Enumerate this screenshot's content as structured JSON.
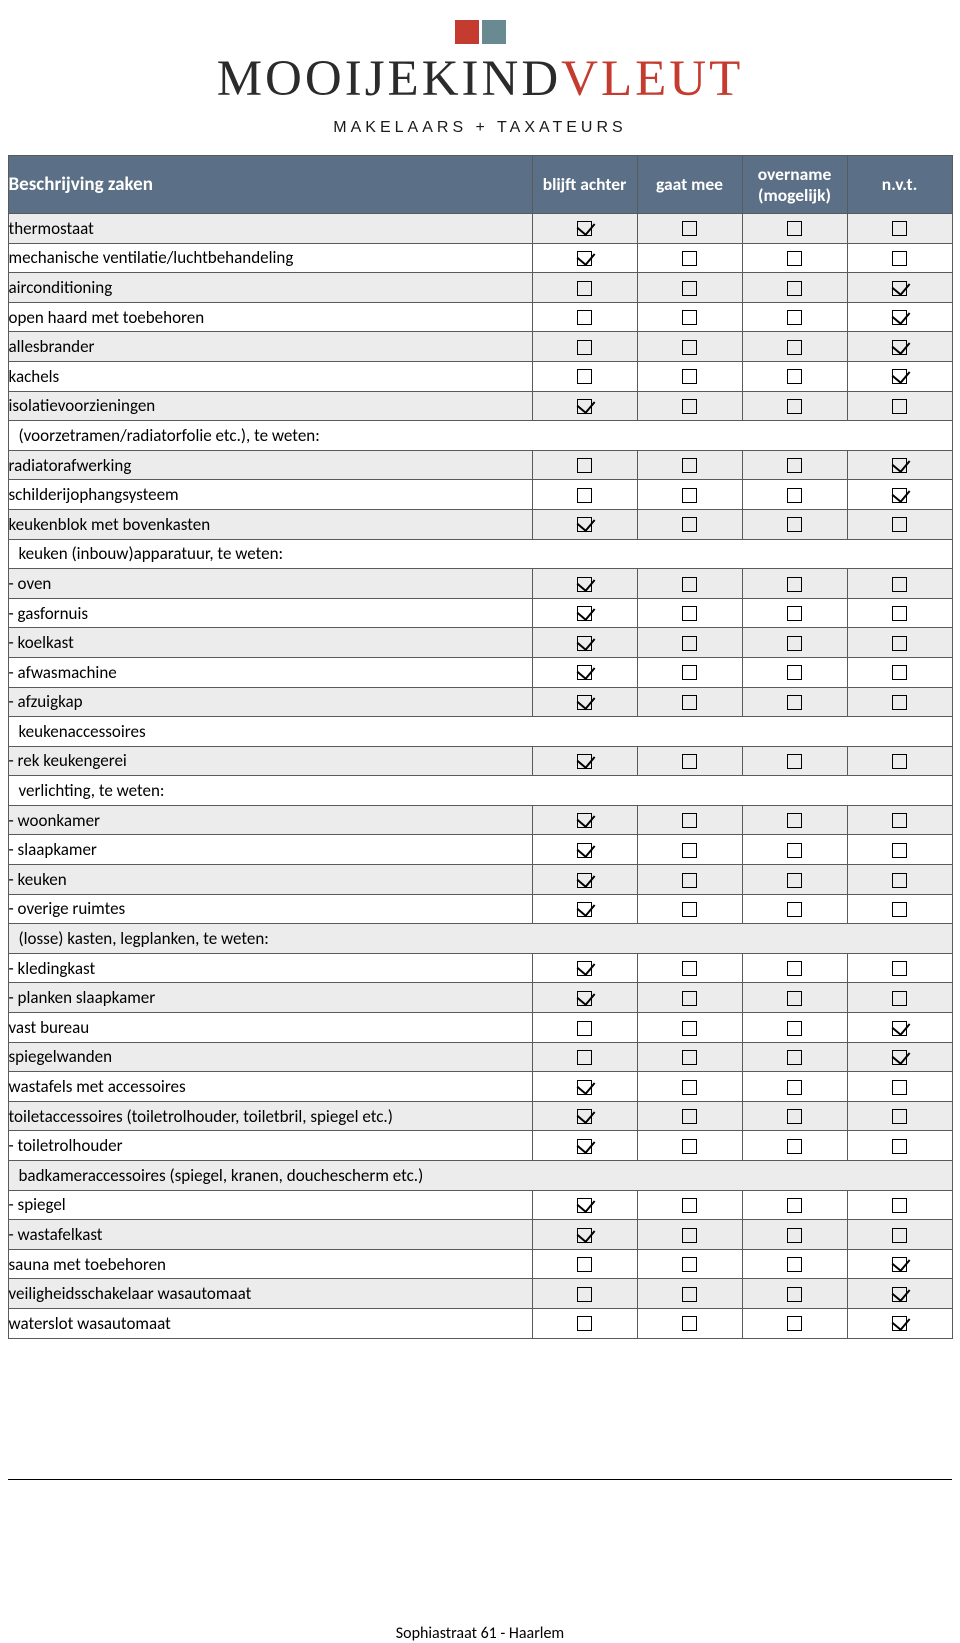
{
  "brand": {
    "word1": "MOOIJEKIND",
    "word2": "VLEUT",
    "color1": "#c43b2f",
    "color2": "#6a8a92",
    "tagline": "MAKELAARS + TAXATEURS",
    "word1_color": "#2b2b2b",
    "word2_color": "#c43b2f"
  },
  "headers": {
    "desc": "Beschrijving zaken",
    "c1": "blijft achter",
    "c2": "gaat mee",
    "c3": "overname (mogelijk)",
    "c4": "n.v.t."
  },
  "rows": [
    {
      "label": "thermostaat",
      "checks": [
        1,
        0,
        0,
        0
      ],
      "section": false
    },
    {
      "label": "mechanische ventilatie/luchtbehandeling",
      "checks": [
        1,
        0,
        0,
        0
      ],
      "section": false
    },
    {
      "label": "airconditioning",
      "checks": [
        0,
        0,
        0,
        1
      ],
      "section": false
    },
    {
      "label": "open haard met toebehoren",
      "checks": [
        0,
        0,
        0,
        1
      ],
      "section": false
    },
    {
      "label": "allesbrander",
      "checks": [
        0,
        0,
        0,
        1
      ],
      "section": false
    },
    {
      "label": "kachels",
      "checks": [
        0,
        0,
        0,
        1
      ],
      "section": false
    },
    {
      "label": "isolatievoorzieningen",
      "checks": [
        1,
        0,
        0,
        0
      ],
      "section": false
    },
    {
      "label": "(voorzetramen/radiatorfolie etc.), te weten:",
      "checks": null,
      "section": true
    },
    {
      "label": "radiatorafwerking",
      "checks": [
        0,
        0,
        0,
        1
      ],
      "section": false
    },
    {
      "label": "schilderijophangsysteem",
      "checks": [
        0,
        0,
        0,
        1
      ],
      "section": false
    },
    {
      "label": "keukenblok met bovenkasten",
      "checks": [
        1,
        0,
        0,
        0
      ],
      "section": false
    },
    {
      "label": "keuken (inbouw)apparatuur, te weten:",
      "checks": null,
      "section": true
    },
    {
      "label": "- oven",
      "checks": [
        1,
        0,
        0,
        0
      ],
      "section": false
    },
    {
      "label": "- gasfornuis",
      "checks": [
        1,
        0,
        0,
        0
      ],
      "section": false
    },
    {
      "label": "- koelkast",
      "checks": [
        1,
        0,
        0,
        0
      ],
      "section": false
    },
    {
      "label": "- afwasmachine",
      "checks": [
        1,
        0,
        0,
        0
      ],
      "section": false
    },
    {
      "label": "- afzuigkap",
      "checks": [
        1,
        0,
        0,
        0
      ],
      "section": false
    },
    {
      "label": "keukenaccessoires",
      "checks": null,
      "section": true
    },
    {
      "label": "- rek keukengerei",
      "checks": [
        1,
        0,
        0,
        0
      ],
      "section": false
    },
    {
      "label": "verlichting, te weten:",
      "checks": null,
      "section": true
    },
    {
      "label": "- woonkamer",
      "checks": [
        1,
        0,
        0,
        0
      ],
      "section": false
    },
    {
      "label": "- slaapkamer",
      "checks": [
        1,
        0,
        0,
        0
      ],
      "section": false
    },
    {
      "label": "- keuken",
      "checks": [
        1,
        0,
        0,
        0
      ],
      "section": false
    },
    {
      "label": "- overige ruimtes",
      "checks": [
        1,
        0,
        0,
        0
      ],
      "section": false
    },
    {
      "label": "(losse) kasten, legplanken, te weten:",
      "checks": null,
      "section": true
    },
    {
      "label": "- kledingkast",
      "checks": [
        1,
        0,
        0,
        0
      ],
      "section": false
    },
    {
      "label": "- planken slaapkamer",
      "checks": [
        1,
        0,
        0,
        0
      ],
      "section": false
    },
    {
      "label": "vast bureau",
      "checks": [
        0,
        0,
        0,
        1
      ],
      "section": false
    },
    {
      "label": "spiegelwanden",
      "checks": [
        0,
        0,
        0,
        1
      ],
      "section": false
    },
    {
      "label": "wastafels met accessoires",
      "checks": [
        1,
        0,
        0,
        0
      ],
      "section": false
    },
    {
      "label": "toiletaccessoires (toiletrolhouder, toiletbril, spiegel etc.)",
      "checks": [
        1,
        0,
        0,
        0
      ],
      "section": false
    },
    {
      "label": "- toiletrolhouder",
      "checks": [
        1,
        0,
        0,
        0
      ],
      "section": false
    },
    {
      "label": "badkameraccessoires (spiegel, kranen, douchescherm etc.)",
      "checks": null,
      "section": true
    },
    {
      "label": "- spiegel",
      "checks": [
        1,
        0,
        0,
        0
      ],
      "section": false
    },
    {
      "label": "- wastafelkast",
      "checks": [
        1,
        0,
        0,
        0
      ],
      "section": false
    },
    {
      "label": "sauna met toebehoren",
      "checks": [
        0,
        0,
        0,
        1
      ],
      "section": false
    },
    {
      "label": "veiligheidsschakelaar wasautomaat",
      "checks": [
        0,
        0,
        0,
        1
      ],
      "section": false
    },
    {
      "label": "waterslot wasautomaat",
      "checks": [
        0,
        0,
        0,
        1
      ],
      "section": false
    }
  ],
  "footer": "Sophiastraat 61 - Haarlem"
}
